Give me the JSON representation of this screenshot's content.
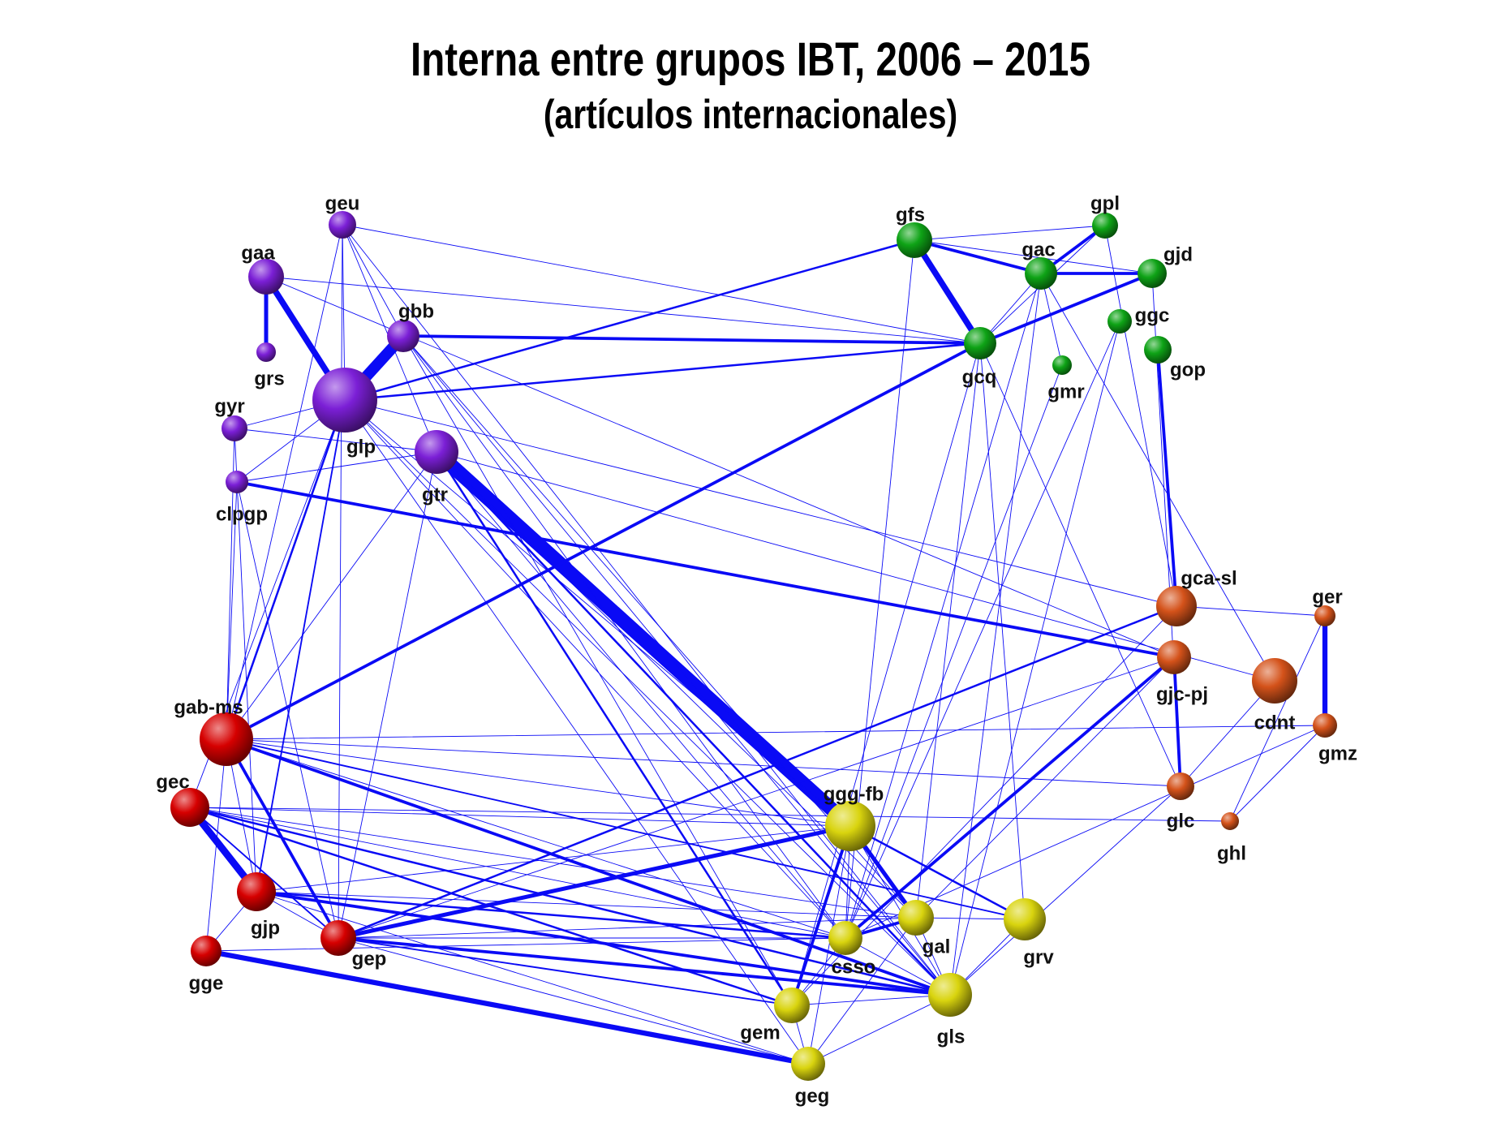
{
  "title": "Interna entre grupos IBT, 2006 – 2015",
  "subtitle": "(artículos internacionales)",
  "colors": {
    "edge": "#0a0af5",
    "purple": "#7b1fd6",
    "green": "#0ea316",
    "orange": "#d4521a",
    "red": "#d60000",
    "yellow": "#d9d40e"
  },
  "nodes": [
    {
      "id": "geu",
      "label": "geu",
      "group": "purple"
    },
    {
      "id": "gaa",
      "label": "gaa",
      "group": "purple"
    },
    {
      "id": "grs",
      "label": "grs",
      "group": "purple"
    },
    {
      "id": "gbb",
      "label": "gbb",
      "group": "purple"
    },
    {
      "id": "glp",
      "label": "glp",
      "group": "purple"
    },
    {
      "id": "gyr",
      "label": "gyr",
      "group": "purple"
    },
    {
      "id": "clpgp",
      "label": "clpgp",
      "group": "purple"
    },
    {
      "id": "gtr",
      "label": "gtr",
      "group": "purple"
    },
    {
      "id": "gfs",
      "label": "gfs",
      "group": "green"
    },
    {
      "id": "gpl",
      "label": "gpl",
      "group": "green"
    },
    {
      "id": "gac",
      "label": "gac",
      "group": "green"
    },
    {
      "id": "gjd",
      "label": "gjd",
      "group": "green"
    },
    {
      "id": "ggc",
      "label": "ggc",
      "group": "green"
    },
    {
      "id": "gcq",
      "label": "gcq",
      "group": "green"
    },
    {
      "id": "gmr",
      "label": "gmr",
      "group": "green"
    },
    {
      "id": "gop",
      "label": "gop",
      "group": "green"
    },
    {
      "id": "gca-sl",
      "label": "gca-sl",
      "group": "orange"
    },
    {
      "id": "ger",
      "label": "ger",
      "group": "orange"
    },
    {
      "id": "gjc-pj",
      "label": "gjc-pj",
      "group": "orange"
    },
    {
      "id": "cdnt",
      "label": "cdnt",
      "group": "orange"
    },
    {
      "id": "gmz",
      "label": "gmz",
      "group": "orange"
    },
    {
      "id": "glc",
      "label": "glc",
      "group": "orange"
    },
    {
      "id": "ghl",
      "label": "ghl",
      "group": "orange"
    },
    {
      "id": "gab-ms",
      "label": "gab-ms",
      "group": "red"
    },
    {
      "id": "gec",
      "label": "gec",
      "group": "red"
    },
    {
      "id": "gjp",
      "label": "gjp",
      "group": "red"
    },
    {
      "id": "gep",
      "label": "gep",
      "group": "red"
    },
    {
      "id": "gge",
      "label": "gge",
      "group": "red"
    },
    {
      "id": "ggg-fb",
      "label": "ggg-fb",
      "group": "yellow"
    },
    {
      "id": "gal",
      "label": "gal",
      "group": "yellow"
    },
    {
      "id": "grv",
      "label": "grv",
      "group": "yellow"
    },
    {
      "id": "csso",
      "label": "csso",
      "group": "yellow"
    },
    {
      "id": "gls",
      "label": "gls",
      "group": "yellow"
    },
    {
      "id": "gem",
      "label": "gem",
      "group": "yellow"
    },
    {
      "id": "geg",
      "label": "geg",
      "group": "yellow"
    }
  ],
  "edges": [
    [
      "gtr",
      "ggg-fb",
      14
    ],
    [
      "glp",
      "gbb",
      11
    ],
    [
      "gaa",
      "glp",
      6
    ],
    [
      "gfs",
      "gcq",
      6
    ],
    [
      "gec",
      "gjp",
      7
    ],
    [
      "gaa",
      "grs",
      4
    ],
    [
      "ger",
      "gmz",
      5
    ],
    [
      "gge",
      "geg",
      5
    ],
    [
      "gep",
      "ggg-fb",
      4
    ],
    [
      "ggg-fb",
      "gal",
      4
    ],
    [
      "gab-ms",
      "gcq",
      3
    ],
    [
      "gbb",
      "gcq",
      3
    ],
    [
      "gfs",
      "gac",
      3
    ],
    [
      "gac",
      "gjd",
      3
    ],
    [
      "gac",
      "gpl",
      3
    ],
    [
      "gcq",
      "gjd",
      3
    ],
    [
      "gop",
      "gca-sl",
      3
    ],
    [
      "glc",
      "gjc-pj",
      3
    ],
    [
      "gab-ms",
      "gep",
      3
    ],
    [
      "gab-ms",
      "gls",
      3
    ],
    [
      "gjp",
      "gls",
      3
    ],
    [
      "gep",
      "gls",
      3
    ],
    [
      "clpgp",
      "gjc-pj",
      3
    ],
    [
      "csso",
      "gjc-pj",
      3
    ],
    [
      "gem",
      "ggg-fb",
      3
    ],
    [
      "csso",
      "gal",
      3
    ],
    [
      "gab-ms",
      "glp",
      2
    ],
    [
      "glp",
      "gcq",
      2
    ],
    [
      "gtr",
      "gem",
      2
    ],
    [
      "gtr",
      "gls",
      2
    ],
    [
      "gjp",
      "csso",
      2
    ],
    [
      "gec",
      "gls",
      2
    ],
    [
      "gep",
      "gca-sl",
      2
    ],
    [
      "ggg-fb",
      "grv",
      2
    ],
    [
      "gfs",
      "glp",
      2
    ],
    [
      "gec",
      "gem",
      2
    ],
    [
      "gep",
      "gem",
      1.5
    ],
    [
      "glp",
      "gjp",
      1.5
    ],
    [
      "gab-ms",
      "grv",
      1.5
    ],
    [
      "gec",
      "gep",
      1.5
    ],
    [
      "geu",
      "glp",
      1
    ],
    [
      "geu",
      "gbb",
      1
    ],
    [
      "geu",
      "gtr",
      1
    ],
    [
      "geu",
      "gep",
      1
    ],
    [
      "geu",
      "gls",
      1
    ],
    [
      "geu",
      "gcq",
      1
    ],
    [
      "geu",
      "gab-ms",
      1
    ],
    [
      "gaa",
      "gcq",
      1
    ],
    [
      "gaa",
      "gjc-pj",
      1
    ],
    [
      "gbb",
      "gls",
      1
    ],
    [
      "gbb",
      "csso",
      1
    ],
    [
      "gbb",
      "gem",
      1
    ],
    [
      "gbb",
      "gal",
      1
    ],
    [
      "glp",
      "gls",
      1
    ],
    [
      "glp",
      "csso",
      1
    ],
    [
      "glp",
      "ggg-fb",
      1
    ],
    [
      "glp",
      "gca-sl",
      1
    ],
    [
      "glp",
      "geg",
      1
    ],
    [
      "glp",
      "gec",
      1
    ],
    [
      "gyr",
      "gjp",
      1
    ],
    [
      "gyr",
      "glp",
      1
    ],
    [
      "gyr",
      "gtr",
      1
    ],
    [
      "gyr",
      "gab-ms",
      1
    ],
    [
      "clpgp",
      "glp",
      1
    ],
    [
      "clpgp",
      "gep",
      1
    ],
    [
      "clpgp",
      "gab-ms",
      1
    ],
    [
      "clpgp",
      "gtr",
      1
    ],
    [
      "gtr",
      "csso",
      1
    ],
    [
      "gtr",
      "gal",
      1
    ],
    [
      "gtr",
      "gep",
      1
    ],
    [
      "gtr",
      "gab-ms",
      1
    ],
    [
      "gtr",
      "cdnt",
      1
    ],
    [
      "gfs",
      "gpl",
      1
    ],
    [
      "gfs",
      "csso",
      1
    ],
    [
      "gfs",
      "gjd",
      1
    ],
    [
      "gac",
      "gcq",
      1
    ],
    [
      "gac",
      "gmr",
      1
    ],
    [
      "gac",
      "gls",
      1
    ],
    [
      "gac",
      "csso",
      1
    ],
    [
      "gac",
      "cdnt",
      1
    ],
    [
      "gpl",
      "gcq",
      1
    ],
    [
      "gpl",
      "gca-sl",
      1
    ],
    [
      "gjd",
      "glc",
      1
    ],
    [
      "ggc",
      "gls",
      1
    ],
    [
      "ggc",
      "csso",
      1
    ],
    [
      "gcq",
      "gem",
      1
    ],
    [
      "gcq",
      "gal",
      1
    ],
    [
      "gcq",
      "grv",
      1
    ],
    [
      "gcq",
      "glc",
      1
    ],
    [
      "gmr",
      "csso",
      1
    ],
    [
      "ger",
      "gca-sl",
      1
    ],
    [
      "ger",
      "ghl",
      1
    ],
    [
      "gmz",
      "ghl",
      1
    ],
    [
      "gmz",
      "gab-ms",
      1
    ],
    [
      "gmz",
      "csso",
      1
    ],
    [
      "cdnt",
      "glc",
      1
    ],
    [
      "gjc-pj",
      "gep",
      1
    ],
    [
      "gjc-pj",
      "gal",
      1
    ],
    [
      "gca-sl",
      "gem",
      1
    ],
    [
      "glc",
      "gls",
      1
    ],
    [
      "ghl",
      "gec",
      1
    ],
    [
      "gab-ms",
      "gjp",
      1
    ],
    [
      "gab-ms",
      "csso",
      1
    ],
    [
      "gab-ms",
      "ggg-fb",
      1
    ],
    [
      "gab-ms",
      "gge",
      1
    ],
    [
      "gab-ms",
      "glc",
      1
    ],
    [
      "gec",
      "ggg-fb",
      1
    ],
    [
      "gec",
      "csso",
      1
    ],
    [
      "gec",
      "gal",
      1
    ],
    [
      "gjp",
      "gep",
      1
    ],
    [
      "gjp",
      "ggg-fb",
      1
    ],
    [
      "gjp",
      "geg",
      1
    ],
    [
      "gjp",
      "gal",
      1
    ],
    [
      "gep",
      "csso",
      1
    ],
    [
      "gep",
      "gal",
      1
    ],
    [
      "gep",
      "geg",
      1
    ],
    [
      "gge",
      "gjp",
      1
    ],
    [
      "gge",
      "csso",
      1
    ],
    [
      "ggg-fb",
      "gls",
      1
    ],
    [
      "ggg-fb",
      "geg",
      1
    ],
    [
      "ggg-fb",
      "csso",
      1
    ],
    [
      "gal",
      "gls",
      1
    ],
    [
      "gal",
      "grv",
      1
    ],
    [
      "gal",
      "geg",
      1
    ],
    [
      "grv",
      "gls",
      1
    ],
    [
      "csso",
      "gls",
      1
    ],
    [
      "csso",
      "gem",
      1
    ],
    [
      "gem",
      "gls",
      1
    ],
    [
      "gem",
      "geg",
      1
    ],
    [
      "geg",
      "gls",
      1
    ]
  ]
}
